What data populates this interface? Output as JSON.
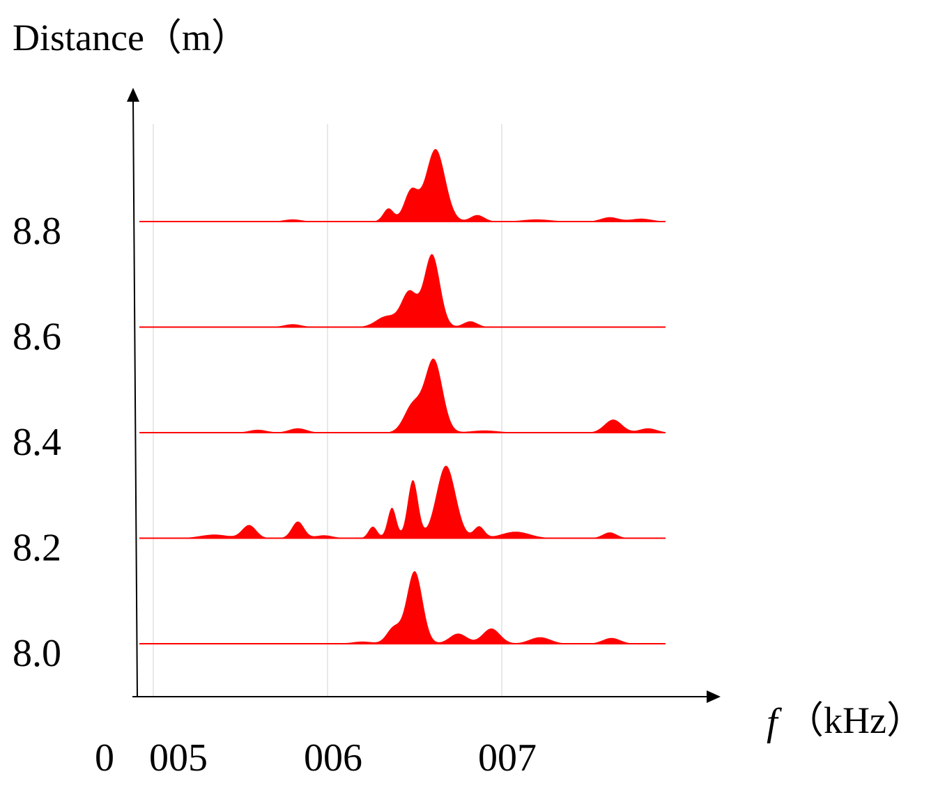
{
  "chart_data": {
    "type": "area",
    "title": "",
    "ylabel": "Distance（m）",
    "xlabel_symbol": "f",
    "xlabel_unit": "（kHz）",
    "origin_label": "0",
    "x_ticks": [
      {
        "value": 5,
        "label": "005"
      },
      {
        "value": 6,
        "label": "006"
      },
      {
        "value": 7,
        "label": "007"
      }
    ],
    "xlim": [
      4.92,
      7.94
    ],
    "grid": "vertical",
    "color": "#ff0000",
    "amplitude_units": "relative",
    "series": [
      {
        "offset": 8.8,
        "label": "8.8",
        "peaks": [
          {
            "f": 6.62,
            "a": 1.0,
            "w": 0.055
          },
          {
            "f": 6.48,
            "a": 0.42,
            "w": 0.04
          },
          {
            "f": 6.35,
            "a": 0.18,
            "w": 0.03
          },
          {
            "f": 6.86,
            "a": 0.09,
            "w": 0.04
          },
          {
            "f": 5.8,
            "a": 0.03,
            "w": 0.05
          },
          {
            "f": 7.2,
            "a": 0.03,
            "w": 0.08
          },
          {
            "f": 7.62,
            "a": 0.06,
            "w": 0.05
          },
          {
            "f": 7.8,
            "a": 0.04,
            "w": 0.06
          }
        ]
      },
      {
        "offset": 8.6,
        "label": "8.6",
        "peaks": [
          {
            "f": 6.6,
            "a": 1.0,
            "w": 0.045
          },
          {
            "f": 6.47,
            "a": 0.48,
            "w": 0.045
          },
          {
            "f": 6.34,
            "a": 0.15,
            "w": 0.06
          },
          {
            "f": 6.82,
            "a": 0.08,
            "w": 0.04
          },
          {
            "f": 5.8,
            "a": 0.04,
            "w": 0.05
          }
        ]
      },
      {
        "offset": 8.4,
        "label": "8.4",
        "peaks": [
          {
            "f": 6.61,
            "a": 1.0,
            "w": 0.05
          },
          {
            "f": 6.49,
            "a": 0.38,
            "w": 0.05
          },
          {
            "f": 7.64,
            "a": 0.18,
            "w": 0.05
          },
          {
            "f": 7.84,
            "a": 0.06,
            "w": 0.05
          },
          {
            "f": 5.83,
            "a": 0.06,
            "w": 0.05
          },
          {
            "f": 5.6,
            "a": 0.04,
            "w": 0.05
          },
          {
            "f": 6.9,
            "a": 0.03,
            "w": 0.08
          }
        ]
      },
      {
        "offset": 8.2,
        "label": "8.2",
        "peaks": [
          {
            "f": 6.68,
            "a": 1.0,
            "w": 0.055
          },
          {
            "f": 6.49,
            "a": 0.8,
            "w": 0.03
          },
          {
            "f": 6.37,
            "a": 0.42,
            "w": 0.025
          },
          {
            "f": 6.26,
            "a": 0.16,
            "w": 0.025
          },
          {
            "f": 6.87,
            "a": 0.16,
            "w": 0.03
          },
          {
            "f": 7.08,
            "a": 0.09,
            "w": 0.08
          },
          {
            "f": 5.55,
            "a": 0.18,
            "w": 0.04
          },
          {
            "f": 5.83,
            "a": 0.23,
            "w": 0.035
          },
          {
            "f": 7.62,
            "a": 0.08,
            "w": 0.04
          },
          {
            "f": 5.35,
            "a": 0.05,
            "w": 0.08
          },
          {
            "f": 5.98,
            "a": 0.04,
            "w": 0.05
          }
        ]
      },
      {
        "offset": 8.0,
        "label": "8.0",
        "peaks": [
          {
            "f": 6.5,
            "a": 1.0,
            "w": 0.045
          },
          {
            "f": 6.38,
            "a": 0.22,
            "w": 0.04
          },
          {
            "f": 6.75,
            "a": 0.14,
            "w": 0.05
          },
          {
            "f": 6.94,
            "a": 0.21,
            "w": 0.05
          },
          {
            "f": 7.22,
            "a": 0.09,
            "w": 0.06
          },
          {
            "f": 7.63,
            "a": 0.08,
            "w": 0.05
          },
          {
            "f": 6.2,
            "a": 0.03,
            "w": 0.06
          }
        ]
      }
    ]
  }
}
